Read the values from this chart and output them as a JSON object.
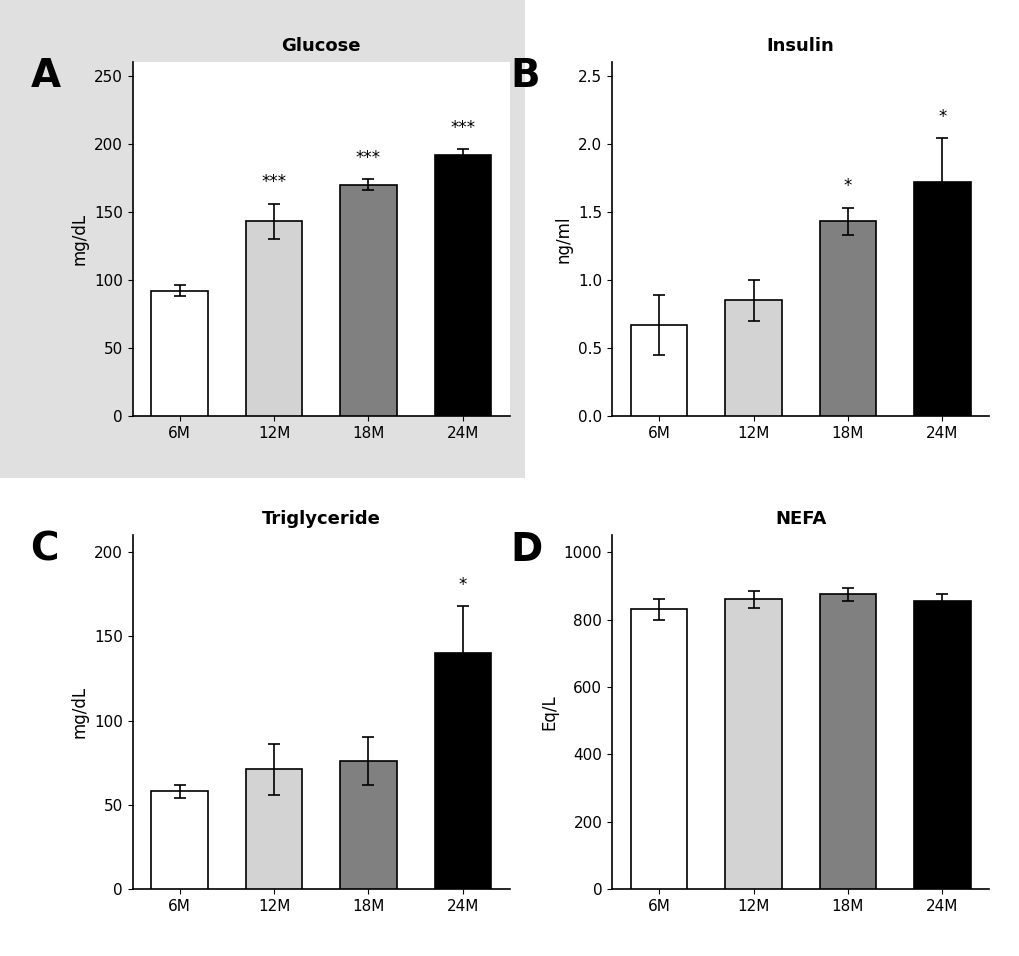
{
  "categories": [
    "6M",
    "12M",
    "18M",
    "24M"
  ],
  "bar_colors": [
    "#ffffff",
    "#d3d3d3",
    "#808080",
    "#000000"
  ],
  "bar_edge_color": "#000000",
  "panel_A": {
    "title": "Glucose",
    "ylabel": "mg/dL",
    "values": [
      92,
      143,
      170,
      192
    ],
    "errors": [
      4,
      13,
      4,
      4
    ],
    "ylim": [
      0,
      260
    ],
    "yticks": [
      0,
      50,
      100,
      150,
      200,
      250
    ],
    "sig_labels": [
      "",
      "***",
      "***",
      "***"
    ]
  },
  "panel_B": {
    "title": "Insulin",
    "ylabel": "ng/ml",
    "values": [
      0.67,
      0.85,
      1.43,
      1.72
    ],
    "errors": [
      0.22,
      0.15,
      0.1,
      0.32
    ],
    "ylim": [
      0,
      2.6
    ],
    "yticks": [
      0.0,
      0.5,
      1.0,
      1.5,
      2.0,
      2.5
    ],
    "sig_labels": [
      "",
      "",
      "*",
      "*"
    ]
  },
  "panel_C": {
    "title": "Triglyceride",
    "ylabel": "mg/dL",
    "values": [
      58,
      71,
      76,
      140
    ],
    "errors": [
      4,
      15,
      14,
      28
    ],
    "ylim": [
      0,
      210
    ],
    "yticks": [
      0,
      50,
      100,
      150,
      200
    ],
    "sig_labels": [
      "",
      "",
      "",
      "*"
    ]
  },
  "panel_D": {
    "title": "NEFA",
    "ylabel": "Eq/L",
    "values": [
      830,
      860,
      875,
      855
    ],
    "errors": [
      30,
      25,
      20,
      22
    ],
    "ylim": [
      0,
      1050
    ],
    "yticks": [
      0,
      200,
      400,
      600,
      800,
      1000
    ],
    "sig_labels": [
      "",
      "",
      "",
      ""
    ]
  },
  "panel_labels": [
    "A",
    "B",
    "C",
    "D"
  ],
  "sig_color": "#000000",
  "background_color": "#ffffff",
  "panel_A_bg_color": "#e0e0e0",
  "title_fontsize": 13,
  "label_fontsize": 12,
  "tick_fontsize": 11,
  "panel_label_fontsize": 28,
  "sig_fontsize": 12
}
